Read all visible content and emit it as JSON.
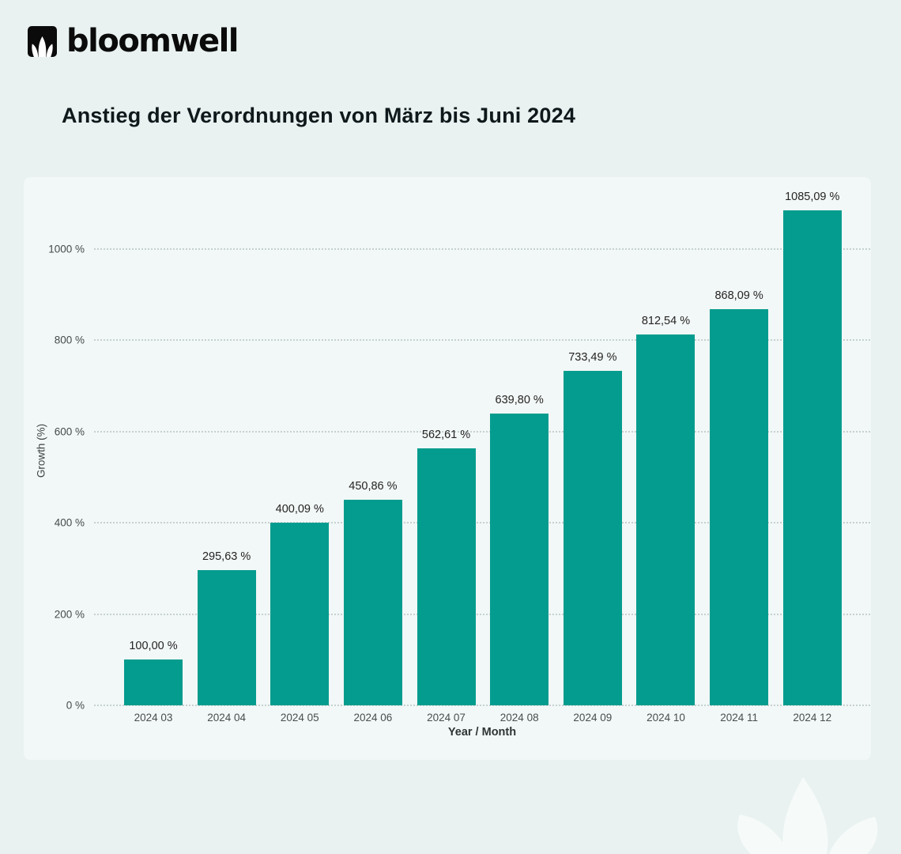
{
  "header": {
    "logo_text": "bloomwell",
    "logo_icon": "lotus-leaf-icon"
  },
  "title": "Anstieg der Verordnungen von März bis Juni 2024",
  "chart_data": {
    "type": "bar",
    "title": "Anstieg der Verordnungen von März bis Juni 2024",
    "categories": [
      "2024 03",
      "2024 04",
      "2024 05",
      "2024 06",
      "2024 07",
      "2024 08",
      "2024 09",
      "2024 10",
      "2024 11",
      "2024 12"
    ],
    "values": [
      100.0,
      295.63,
      400.09,
      450.86,
      562.61,
      639.8,
      733.49,
      812.54,
      868.09,
      1085.09
    ],
    "value_labels": [
      "100,00 %",
      "295,63 %",
      "400,09 %",
      "450,86 %",
      "562,61 %",
      "639,80 %",
      "733,49 %",
      "812,54 %",
      "868,09 %",
      "1085,09 %"
    ],
    "xlabel": "Year / Month",
    "ylabel": "Growth (%)",
    "ylim": [
      0,
      1100
    ],
    "yticks": [
      0,
      200,
      400,
      600,
      800,
      1000
    ],
    "ytick_labels": [
      "0 %",
      "200 %",
      "400 %",
      "600 %",
      "800 %",
      "1000 %"
    ],
    "grid": "horizontal-dotted",
    "legend": "none",
    "bar_color": "#049c8e"
  },
  "colors": {
    "page_background": "#e9f2f1",
    "panel_background": "rgba(255,255,255,0.42)",
    "bar": "#049c8e",
    "title_text": "#0f181a",
    "tick_text": "#474e4d",
    "data_label_text": "#252423",
    "logo_black": "#0b0b0b",
    "watermark_leaf": "#f6fbfa"
  },
  "decor": {
    "watermark_icon": "lotus-leaf-watermark"
  }
}
